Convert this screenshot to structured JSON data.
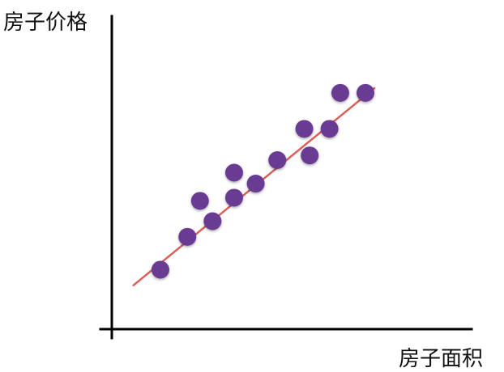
{
  "chart_data": {
    "type": "scatter",
    "xlabel": "房子面积",
    "ylabel": "房子价格",
    "xlim": [
      0,
      100
    ],
    "ylim": [
      0,
      100
    ],
    "grid": false,
    "ticks": false,
    "series": [
      {
        "points": [
          {
            "x": 13.5,
            "y": 19
          },
          {
            "x": 21,
            "y": 29.5
          },
          {
            "x": 24.5,
            "y": 41
          },
          {
            "x": 28,
            "y": 34.5
          },
          {
            "x": 34,
            "y": 42
          },
          {
            "x": 34,
            "y": 50
          },
          {
            "x": 40,
            "y": 46.5
          },
          {
            "x": 46,
            "y": 54
          },
          {
            "x": 53.5,
            "y": 64
          },
          {
            "x": 55,
            "y": 55.5
          },
          {
            "x": 60.5,
            "y": 64
          },
          {
            "x": 63.5,
            "y": 75.5
          },
          {
            "x": 70.5,
            "y": 75.5
          }
        ],
        "color": "#6b3a93"
      }
    ],
    "trendline": {
      "from": {
        "x": 6,
        "y": 14
      },
      "to": {
        "x": 73,
        "y": 77
      },
      "color": "#dd5f5a"
    }
  }
}
